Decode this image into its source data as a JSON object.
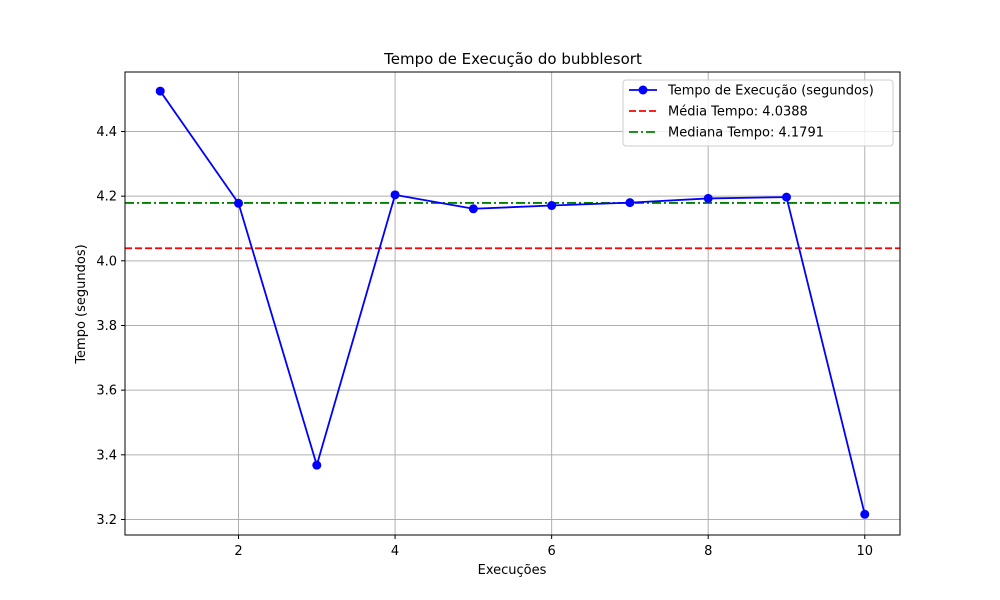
{
  "chart_data": {
    "type": "line",
    "title": "Tempo de Execução do bubblesort",
    "xlabel": "Execuções",
    "ylabel": "Tempo (segundos)",
    "xlim": [
      0.55,
      10.45
    ],
    "ylim": [
      3.152,
      4.584
    ],
    "x_ticks": [
      2,
      4,
      6,
      8,
      10
    ],
    "y_ticks": [
      3.2,
      3.4,
      3.6,
      3.8,
      4.0,
      4.2,
      4.4
    ],
    "grid": true,
    "legend_position": "top-right",
    "series": [
      {
        "name": "Tempo de Execução (segundos)",
        "color": "#0000ff",
        "marker": "circle",
        "x": [
          1,
          2,
          3,
          4,
          5,
          6,
          7,
          8,
          9,
          10
        ],
        "y": [
          4.525,
          4.178,
          3.368,
          4.204,
          4.161,
          4.171,
          4.18,
          4.193,
          4.197,
          3.216
        ]
      }
    ],
    "reference_lines": [
      {
        "name": "Média Tempo: 4.0388",
        "value": 4.0388,
        "color": "#ff0000",
        "style": "dashed"
      },
      {
        "name": "Mediana Tempo: 4.1791",
        "value": 4.1791,
        "color": "#008000",
        "style": "dashdot"
      }
    ]
  }
}
